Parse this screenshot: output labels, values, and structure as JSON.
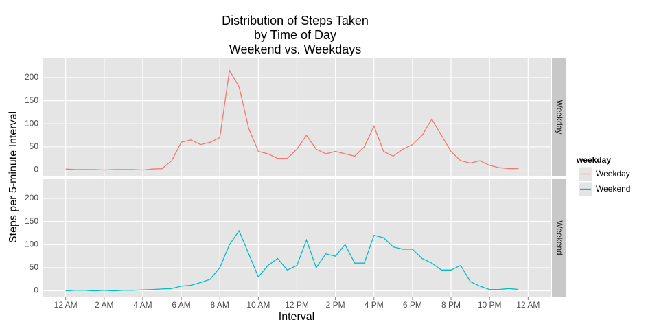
{
  "chart_data": {
    "type": "line",
    "title": [
      "Distribution of Steps Taken",
      "by Time of Day",
      "Weekend vs. Weekdays"
    ],
    "x_label": "Interval",
    "y_label": "Steps per 5-minute Interval",
    "legend_title": "weekday",
    "x": [
      0,
      0.5,
      1,
      1.5,
      2,
      2.5,
      3,
      3.5,
      4,
      4.5,
      5,
      5.5,
      6,
      6.5,
      7,
      7.5,
      8,
      8.5,
      9,
      9.5,
      10,
      10.5,
      11,
      11.5,
      12,
      12.5,
      13,
      13.5,
      14,
      14.5,
      15,
      15.5,
      16,
      16.5,
      17,
      17.5,
      18,
      18.5,
      19,
      19.5,
      20,
      20.5,
      21,
      21.5,
      22,
      22.5,
      23,
      23.5
    ],
    "series": [
      {
        "name": "Weekday",
        "color": "#F8766D",
        "values": [
          2,
          1,
          1,
          1,
          0,
          1,
          1,
          1,
          0,
          2,
          3,
          20,
          60,
          65,
          55,
          60,
          70,
          215,
          180,
          90,
          40,
          35,
          25,
          25,
          45,
          75,
          45,
          35,
          40,
          35,
          30,
          50,
          95,
          40,
          30,
          45,
          55,
          75,
          110,
          75,
          40,
          20,
          15,
          20,
          10,
          5,
          3,
          3
        ]
      },
      {
        "name": "Weekend",
        "color": "#00BFC4",
        "values": [
          0,
          1,
          1,
          0,
          1,
          0,
          1,
          1,
          2,
          3,
          4,
          5,
          10,
          12,
          18,
          25,
          50,
          100,
          130,
          80,
          30,
          55,
          70,
          45,
          55,
          110,
          50,
          80,
          75,
          100,
          60,
          60,
          120,
          115,
          95,
          90,
          90,
          70,
          60,
          45,
          45,
          55,
          20,
          10,
          3,
          3,
          5,
          3
        ]
      }
    ],
    "xlim": [
      -1.2,
      25.2
    ],
    "ylim": [
      -14,
      243
    ],
    "xticks": [
      {
        "value": 0,
        "label": "12 AM"
      },
      {
        "value": 2,
        "label": "2 AM"
      },
      {
        "value": 4,
        "label": "4 AM"
      },
      {
        "value": 6,
        "label": "6 AM"
      },
      {
        "value": 8,
        "label": "8 AM"
      },
      {
        "value": 10,
        "label": "10 AM"
      },
      {
        "value": 12,
        "label": "12 PM"
      },
      {
        "value": 14,
        "label": "2 PM"
      },
      {
        "value": 16,
        "label": "4 PM"
      },
      {
        "value": 18,
        "label": "6 PM"
      },
      {
        "value": 20,
        "label": "8 PM"
      },
      {
        "value": 22,
        "label": "10 PM"
      },
      {
        "value": 24,
        "label": "12 AM"
      }
    ],
    "yticks": [
      0,
      50,
      100,
      150,
      200
    ],
    "grid": true
  }
}
